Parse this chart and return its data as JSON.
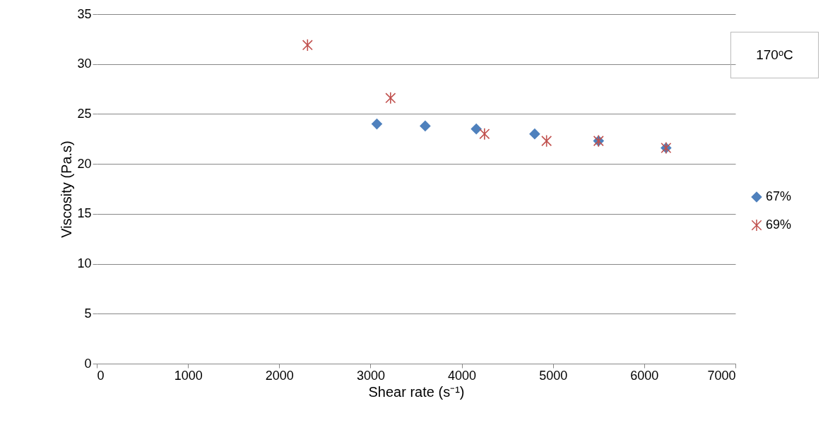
{
  "chart_data": {
    "type": "scatter",
    "xlabel": "Shear rate (s⁻¹)",
    "ylabel": "Viscosity (Pa.s)",
    "xlim": [
      0,
      7000
    ],
    "xticks": [
      0,
      1000,
      2000,
      3000,
      4000,
      5000,
      6000,
      7000
    ],
    "ylim": [
      0,
      35
    ],
    "yticks": [
      0,
      5,
      10,
      15,
      20,
      25,
      30,
      35
    ],
    "grid": "y",
    "legend": "right",
    "annotations": [
      "170ᵒC"
    ],
    "series": [
      {
        "name": "67%",
        "color": "#4f81bd",
        "marker": "diamond",
        "x": [
          3070,
          3600,
          4160,
          4800,
          5500,
          6240
        ],
        "values": [
          24.0,
          23.8,
          23.5,
          23.0,
          22.3,
          21.6
        ]
      },
      {
        "name": "69%",
        "color": "#c0504d",
        "marker": "cross",
        "x": [
          2310,
          3220,
          4250,
          4930,
          5500,
          6240
        ],
        "values": [
          31.9,
          26.6,
          23.0,
          22.3,
          22.3,
          21.6
        ]
      }
    ]
  }
}
